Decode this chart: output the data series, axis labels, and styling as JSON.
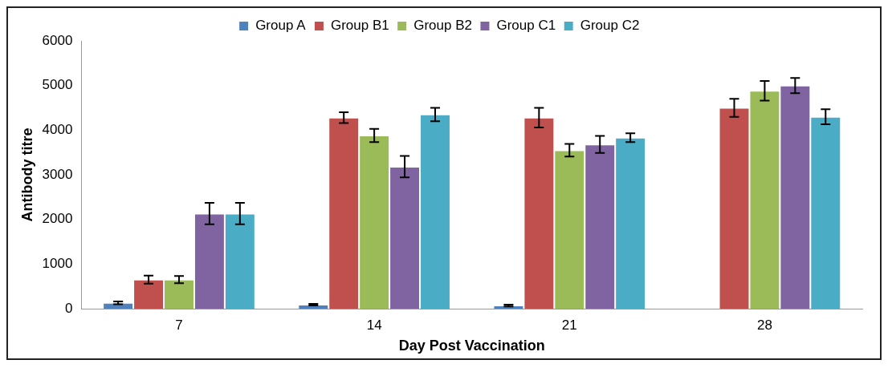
{
  "chart_data": {
    "type": "bar",
    "xlabel": "Day Post Vaccination",
    "ylabel": "Antibody titre",
    "categories": [
      "7",
      "14",
      "21",
      "28"
    ],
    "series": [
      {
        "name": "Group A",
        "color": "#4f81bd",
        "values": [
          130,
          90,
          70,
          null
        ],
        "errors": [
          30,
          20,
          20,
          null
        ]
      },
      {
        "name": "Group B1",
        "color": "#c0504d",
        "values": [
          650,
          4280,
          4280,
          4500
        ],
        "errors": [
          90,
          120,
          220,
          200
        ]
      },
      {
        "name": "Group B2",
        "color": "#9bbb59",
        "values": [
          650,
          3880,
          3550,
          4880
        ],
        "errors": [
          80,
          150,
          140,
          220
        ]
      },
      {
        "name": "Group C1",
        "color": "#8064a2",
        "values": [
          2130,
          3180,
          3680,
          5000
        ],
        "errors": [
          240,
          240,
          190,
          170
        ]
      },
      {
        "name": "Group C2",
        "color": "#4bacc6",
        "values": [
          2130,
          4350,
          3830,
          4300
        ],
        "errors": [
          240,
          150,
          100,
          170
        ]
      }
    ],
    "ylim": [
      0,
      6000
    ],
    "yticks": [
      0,
      1000,
      2000,
      3000,
      4000,
      5000,
      6000
    ],
    "grid": false,
    "legend": "top"
  }
}
